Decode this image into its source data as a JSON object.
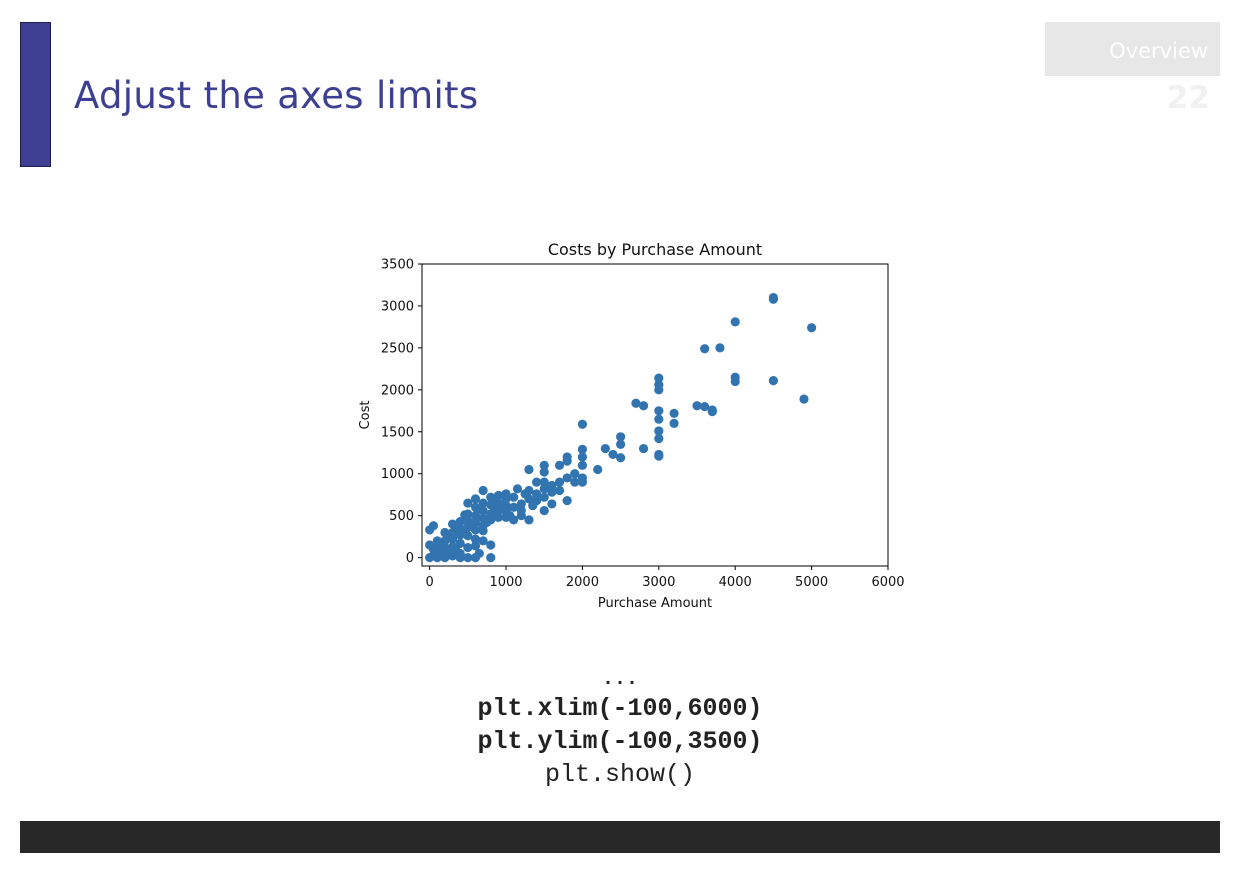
{
  "slide": {
    "title": "Adjust the axes limits",
    "section": "Overview",
    "page_number": "22"
  },
  "colors": {
    "accent": "#3d3f92",
    "marker": "#3274b0",
    "footer": "#282828"
  },
  "code": {
    "lines": [
      "...",
      "plt.xlim(-100,6000)",
      "plt.ylim(-100,3500)",
      "plt.show()"
    ]
  },
  "chart_data": {
    "type": "scatter",
    "title": "Costs by Purchase Amount",
    "xlabel": "Purchase Amount",
    "ylabel": "Cost",
    "xlim": [
      -100,
      6000
    ],
    "ylim": [
      -100,
      3500
    ],
    "xticks": [
      "0",
      "1000",
      "2000",
      "3000",
      "4000",
      "5000",
      "6000"
    ],
    "yticks": [
      "0",
      "500",
      "1000",
      "1500",
      "2000",
      "2500",
      "3000",
      "3500"
    ],
    "grid": false,
    "series": [
      {
        "points": [
          [
            4500,
            3100
          ],
          [
            4500,
            3080
          ],
          [
            5000,
            2740
          ],
          [
            4000,
            2810
          ],
          [
            3600,
            2490
          ],
          [
            3800,
            2500
          ],
          [
            4000,
            2150
          ],
          [
            4000,
            2100
          ],
          [
            4500,
            2110
          ],
          [
            4900,
            1890
          ],
          [
            3000,
            2140
          ],
          [
            3000,
            2060
          ],
          [
            3000,
            2000
          ],
          [
            3000,
            1750
          ],
          [
            3000,
            1650
          ],
          [
            3000,
            1510
          ],
          [
            3000,
            1420
          ],
          [
            3000,
            1230
          ],
          [
            3000,
            1210
          ],
          [
            3200,
            1720
          ],
          [
            3200,
            1600
          ],
          [
            2700,
            1840
          ],
          [
            2800,
            1810
          ],
          [
            2800,
            1300
          ],
          [
            3500,
            1810
          ],
          [
            3600,
            1800
          ],
          [
            3700,
            1760
          ],
          [
            3700,
            1740
          ],
          [
            2000,
            1590
          ],
          [
            2500,
            1440
          ],
          [
            2500,
            1350
          ],
          [
            2400,
            1230
          ],
          [
            2500,
            1190
          ],
          [
            2300,
            1300
          ],
          [
            2200,
            1050
          ],
          [
            2000,
            1290
          ],
          [
            2000,
            1200
          ],
          [
            2000,
            1100
          ],
          [
            2000,
            950
          ],
          [
            2000,
            900
          ],
          [
            1800,
            1200
          ],
          [
            1800,
            1150
          ],
          [
            1700,
            1100
          ],
          [
            1800,
            950
          ],
          [
            1900,
            900
          ],
          [
            1700,
            800
          ],
          [
            1800,
            680
          ],
          [
            1500,
            1100
          ],
          [
            1500,
            1020
          ],
          [
            1500,
            900
          ],
          [
            1500,
            820
          ],
          [
            1600,
            860
          ],
          [
            1500,
            720
          ],
          [
            1600,
            640
          ],
          [
            1500,
            560
          ],
          [
            1400,
            760
          ],
          [
            1400,
            680
          ],
          [
            1300,
            800
          ],
          [
            1300,
            700
          ],
          [
            1200,
            640
          ],
          [
            1200,
            560
          ],
          [
            1100,
            720
          ],
          [
            1100,
            600
          ],
          [
            1000,
            760
          ],
          [
            1000,
            700
          ],
          [
            1000,
            620
          ],
          [
            1000,
            550
          ],
          [
            900,
            740
          ],
          [
            900,
            650
          ],
          [
            900,
            560
          ],
          [
            800,
            720
          ],
          [
            800,
            630
          ],
          [
            800,
            520
          ],
          [
            800,
            450
          ],
          [
            700,
            800
          ],
          [
            700,
            650
          ],
          [
            700,
            560
          ],
          [
            700,
            470
          ],
          [
            700,
            380
          ],
          [
            600,
            700
          ],
          [
            600,
            600
          ],
          [
            600,
            500
          ],
          [
            600,
            420
          ],
          [
            600,
            330
          ],
          [
            600,
            220
          ],
          [
            500,
            650
          ],
          [
            500,
            520
          ],
          [
            500,
            440
          ],
          [
            500,
            360
          ],
          [
            500,
            260
          ],
          [
            450,
            450
          ],
          [
            400,
            430
          ],
          [
            400,
            350
          ],
          [
            400,
            270
          ],
          [
            400,
            170
          ],
          [
            350,
            330
          ],
          [
            300,
            400
          ],
          [
            300,
            300
          ],
          [
            300,
            220
          ],
          [
            300,
            130
          ],
          [
            250,
            250
          ],
          [
            200,
            300
          ],
          [
            200,
            200
          ],
          [
            200,
            120
          ],
          [
            200,
            50
          ],
          [
            150,
            160
          ],
          [
            100,
            200
          ],
          [
            100,
            120
          ],
          [
            100,
            60
          ],
          [
            50,
            100
          ],
          [
            50,
            30
          ],
          [
            0,
            0
          ],
          [
            0,
            330
          ],
          [
            50,
            380
          ],
          [
            0,
            150
          ],
          [
            300,
            20
          ],
          [
            400,
            50
          ],
          [
            500,
            0
          ],
          [
            600,
            0
          ],
          [
            650,
            50
          ],
          [
            800,
            150
          ],
          [
            800,
            0
          ],
          [
            1100,
            450
          ],
          [
            1200,
            500
          ],
          [
            1300,
            450
          ],
          [
            900,
            480
          ],
          [
            1000,
            480
          ],
          [
            600,
            140
          ],
          [
            700,
            200
          ],
          [
            460,
            510
          ],
          [
            1150,
            820
          ],
          [
            1300,
            1050
          ],
          [
            1400,
            900
          ],
          [
            1600,
            780
          ],
          [
            1700,
            900
          ],
          [
            1900,
            1000
          ],
          [
            850,
            560
          ],
          [
            950,
            600
          ],
          [
            350,
            80
          ],
          [
            250,
            40
          ],
          [
            150,
            20
          ],
          [
            100,
            0
          ],
          [
            700,
            320
          ],
          [
            750,
            420
          ],
          [
            650,
            580
          ],
          [
            550,
            380
          ],
          [
            450,
            300
          ],
          [
            850,
            670
          ],
          [
            1050,
            500
          ],
          [
            1250,
            760
          ],
          [
            1350,
            620
          ],
          [
            400,
            0
          ],
          [
            200,
            0
          ],
          [
            300,
            60
          ],
          [
            500,
            120
          ],
          [
            150,
            80
          ]
        ]
      }
    ]
  }
}
